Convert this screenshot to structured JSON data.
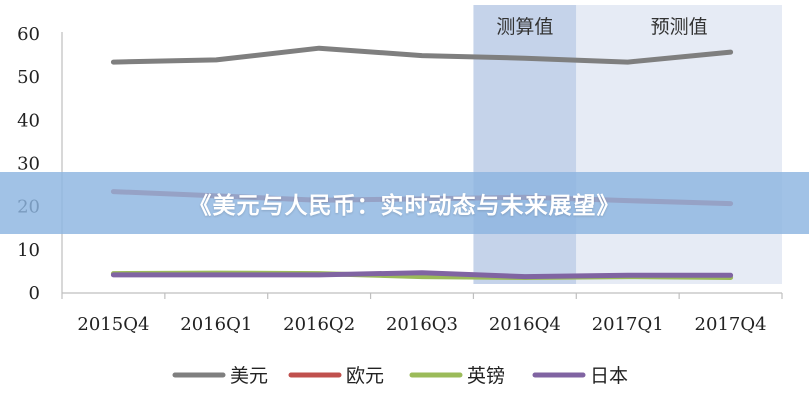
{
  "banner": {
    "title": "《美元与人民币：实时动态与未来展望》"
  },
  "chart_data": {
    "type": "line",
    "categories": [
      "2015Q4",
      "2016Q1",
      "2016Q2",
      "2016Q3",
      "2016Q4",
      "2017Q1",
      "2017Q4"
    ],
    "ylim": [
      0,
      60
    ],
    "yticks": [
      0,
      10,
      20,
      30,
      40,
      50,
      60
    ],
    "grid": false,
    "legend": "bottom",
    "shaded_regions": [
      {
        "label": "测算值",
        "from": "2016Q4",
        "to": "2016Q4",
        "color": "#c5d3ea"
      },
      {
        "label": "预测值",
        "from": "2017Q1",
        "to": "2017Q4",
        "color": "#e6ebf5"
      }
    ],
    "series": [
      {
        "name": "美元",
        "color": "#7f7f7f",
        "values": [
          53.5,
          54,
          56.7,
          55,
          54.4,
          53.5,
          55.8
        ]
      },
      {
        "name": "欧元",
        "color": "#c0504d",
        "values": [
          23.5,
          22.5,
          21.5,
          21.8,
          22.2,
          21.4,
          20.7
        ]
      },
      {
        "name": "英镑",
        "color": "#9bbb59",
        "values": [
          4.5,
          4.6,
          4.5,
          3.8,
          3.6,
          3.8,
          3.6
        ]
      },
      {
        "name": "日本",
        "color": "#8064a2",
        "values": [
          4.2,
          4.2,
          4.2,
          4.7,
          3.8,
          4.1,
          4.1
        ]
      }
    ]
  }
}
